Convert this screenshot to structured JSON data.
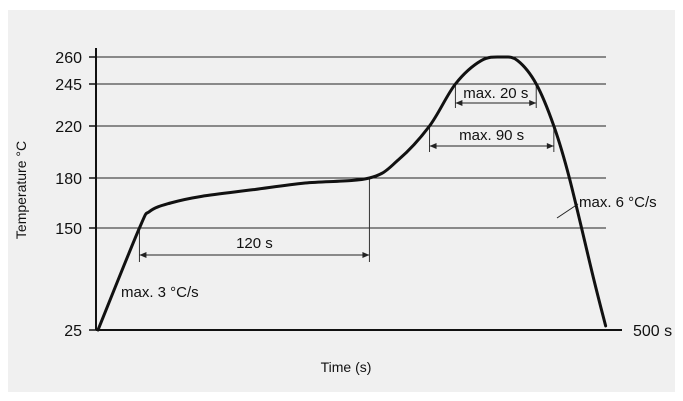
{
  "chart_data": {
    "type": "line",
    "title": "",
    "xlabel": "Time (s)",
    "ylabel": "Temperature °C",
    "ytick_labels": [
      "25",
      "150",
      "180",
      "220",
      "245",
      "260"
    ],
    "xtick_labels": [
      "500 s"
    ],
    "grid": "horizontal lines at y tick values",
    "series": [
      {
        "x": [
          0,
          40,
          50,
          70,
          100,
          150,
          200,
          262,
          290,
          320,
          345,
          370,
          390,
          405,
          423,
          440,
          455,
          478,
          490
        ],
        "y": [
          25,
          150,
          160,
          165,
          169,
          173,
          177,
          180,
          194,
          220,
          245,
          258,
          260,
          258,
          245,
          220,
          180,
          90,
          30
        ]
      }
    ],
    "annotations": {
      "ramp_up": "max. 3 °C/s",
      "preheat": "120 s",
      "above_220": "max. 90 s",
      "above_245": "max. 20 s",
      "ramp_down": "max. 6 °C/s"
    }
  }
}
